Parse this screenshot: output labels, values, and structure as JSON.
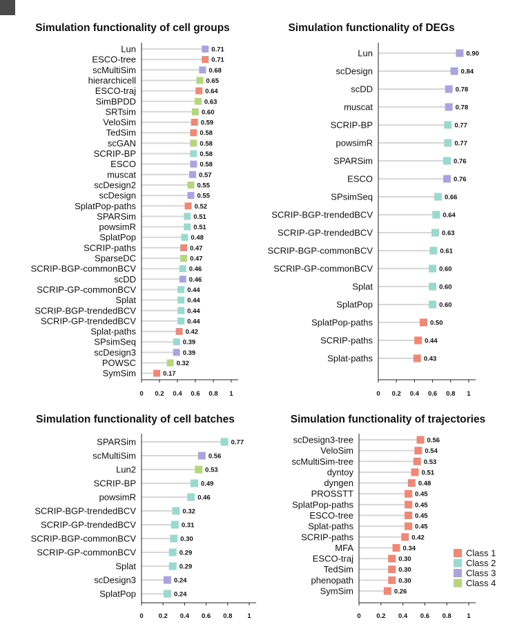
{
  "class_colors": {
    "Class 1": "#F08878",
    "Class 2": "#9AD9CE",
    "Class 3": "#A9A4DD",
    "Class 4": "#B4D67C"
  },
  "legend": {
    "entries": [
      "Class 1",
      "Class 2",
      "Class 3",
      "Class 4"
    ],
    "position": "bottom-right"
  },
  "chart_data": [
    {
      "type": "lollipop",
      "title": "Simulation functionality of cell groups",
      "xlim": [
        0,
        1
      ],
      "xticks": [
        "0",
        "0.2",
        "0.4",
        "0.6",
        "0.8",
        "1"
      ],
      "categories": [
        "Lun",
        "ESCO-tree",
        "scMultiSim",
        "hierarchicell",
        "ESCO-traj",
        "SimBPDD",
        "SRTsim",
        "VeloSim",
        "TedSim",
        "scGAN",
        "SCRIP-BP",
        "ESCO",
        "muscat",
        "scDesign2",
        "scDesign",
        "SplatPop-paths",
        "SPARSim",
        "powsimR",
        "SplatPop",
        "SCRIP-paths",
        "SparseDC",
        "SCRIP-BGP-commonBCV",
        "scDD",
        "SCRIP-GP-commonBCV",
        "Splat",
        "SCRIP-BGP-trendedBCV",
        "SCRIP-GP-trendedBCV",
        "Splat-paths",
        "SPsimSeq",
        "scDesign3",
        "POWSC",
        "SymSim"
      ],
      "values": [
        0.71,
        0.71,
        0.68,
        0.65,
        0.64,
        0.63,
        0.6,
        0.59,
        0.58,
        0.58,
        0.58,
        0.58,
        0.57,
        0.55,
        0.55,
        0.52,
        0.51,
        0.51,
        0.48,
        0.47,
        0.47,
        0.46,
        0.46,
        0.44,
        0.44,
        0.44,
        0.44,
        0.42,
        0.39,
        0.39,
        0.32,
        0.17
      ],
      "value_labels": [
        "0.71",
        "0.71",
        "0.68",
        "0.65",
        "0.64",
        "0.63",
        "0.60",
        "0.59",
        "0.58",
        "0.58",
        "0.58",
        "0.58",
        "0.57",
        "0.55",
        "0.55",
        "0.52",
        "0.51",
        "0.51",
        "0.48",
        "0.47",
        "0.47",
        "0.46",
        "0.46",
        "0.44",
        "0.44",
        "0.44",
        "0.44",
        "0.42",
        "0.39",
        "0.39",
        "0.32",
        "0.17"
      ],
      "classes": [
        "Class 3",
        "Class 1",
        "Class 3",
        "Class 4",
        "Class 1",
        "Class 4",
        "Class 4",
        "Class 1",
        "Class 1",
        "Class 4",
        "Class 2",
        "Class 3",
        "Class 3",
        "Class 4",
        "Class 3",
        "Class 1",
        "Class 2",
        "Class 2",
        "Class 2",
        "Class 1",
        "Class 4",
        "Class 2",
        "Class 3",
        "Class 2",
        "Class 2",
        "Class 2",
        "Class 2",
        "Class 1",
        "Class 2",
        "Class 3",
        "Class 4",
        "Class 1"
      ]
    },
    {
      "type": "lollipop",
      "title": "Simulation functionality of DEGs",
      "xlim": [
        0,
        1
      ],
      "xticks": [
        "0",
        "0.2",
        "0.4",
        "0.6",
        "0.8",
        "1"
      ],
      "categories": [
        "Lun",
        "scDesign",
        "scDD",
        "muscat",
        "SCRIP-BP",
        "powsimR",
        "SPARSim",
        "ESCO",
        "SPsimSeq",
        "SCRIP-BGP-trendedBCV",
        "SCRIP-GP-trendedBCV",
        "SCRIP-BGP-commonBCV",
        "SCRIP-GP-commonBCV",
        "Splat",
        "SplatPop",
        "SplatPop-paths",
        "SCRIP-paths",
        "Splat-paths"
      ],
      "values": [
        0.9,
        0.84,
        0.78,
        0.78,
        0.77,
        0.77,
        0.76,
        0.76,
        0.66,
        0.64,
        0.63,
        0.61,
        0.6,
        0.6,
        0.6,
        0.5,
        0.44,
        0.43
      ],
      "value_labels": [
        "0.90",
        "0.84",
        "0.78",
        "0.78",
        "0.77",
        "0.77",
        "0.76",
        "0.76",
        "0.66",
        "0.64",
        "0.63",
        "0.61",
        "0.60",
        "0.60",
        "0.60",
        "0.50",
        "0.44",
        "0.43"
      ],
      "classes": [
        "Class 3",
        "Class 3",
        "Class 3",
        "Class 3",
        "Class 2",
        "Class 2",
        "Class 2",
        "Class 3",
        "Class 2",
        "Class 2",
        "Class 2",
        "Class 2",
        "Class 2",
        "Class 2",
        "Class 2",
        "Class 1",
        "Class 1",
        "Class 1"
      ]
    },
    {
      "type": "lollipop",
      "title": "Simulation functionality of cell batches",
      "xlim": [
        0,
        1
      ],
      "xticks": [
        "0",
        "0.2",
        "0.4",
        "0.6",
        "0.8",
        "1"
      ],
      "categories": [
        "SPARSim",
        "scMultiSim",
        "Lun2",
        "SCRIP-BP",
        "powsimR",
        "SCRIP-BGP-trendedBCV",
        "SCRIP-GP-trendedBCV",
        "SCRIP-BGP-commonBCV",
        "SCRIP-GP-commonBCV",
        "Splat",
        "scDesign3",
        "SplatPop"
      ],
      "values": [
        0.77,
        0.56,
        0.53,
        0.49,
        0.46,
        0.32,
        0.31,
        0.3,
        0.29,
        0.29,
        0.24,
        0.24
      ],
      "value_labels": [
        "0.77",
        "0.56",
        "0.53",
        "0.49",
        "0.46",
        "0.32",
        "0.31",
        "0.30",
        "0.29",
        "0.29",
        "0.24",
        "0.24"
      ],
      "classes": [
        "Class 2",
        "Class 3",
        "Class 4",
        "Class 2",
        "Class 2",
        "Class 2",
        "Class 2",
        "Class 2",
        "Class 2",
        "Class 2",
        "Class 3",
        "Class 2"
      ]
    },
    {
      "type": "lollipop",
      "title": "Simulation functionality of trajectories",
      "xlim": [
        0,
        1
      ],
      "xticks": [
        "0",
        "0.2",
        "0.4",
        "0.6",
        "0.8",
        "1"
      ],
      "categories": [
        "scDesign3-tree",
        "VeloSim",
        "scMultiSim-tree",
        "dyntoy",
        "dyngen",
        "PROSSTT",
        "SplatPop-paths",
        "ESCO-tree",
        "Splat-paths",
        "SCRIP-paths",
        "MFA",
        "ESCO-traj",
        "TedSim",
        "phenopath",
        "SymSim"
      ],
      "values": [
        0.56,
        0.54,
        0.53,
        0.51,
        0.48,
        0.45,
        0.45,
        0.45,
        0.45,
        0.42,
        0.34,
        0.3,
        0.3,
        0.3,
        0.26
      ],
      "value_labels": [
        "0.56",
        "0.54",
        "0.53",
        "0.51",
        "0.48",
        "0.45",
        "0.45",
        "0.45",
        "0.45",
        "0.42",
        "0.34",
        "0.30",
        "0.30",
        "0.30",
        "0.26"
      ],
      "classes": [
        "Class 1",
        "Class 1",
        "Class 1",
        "Class 1",
        "Class 1",
        "Class 1",
        "Class 1",
        "Class 1",
        "Class 1",
        "Class 1",
        "Class 1",
        "Class 1",
        "Class 1",
        "Class 1",
        "Class 1"
      ]
    }
  ]
}
